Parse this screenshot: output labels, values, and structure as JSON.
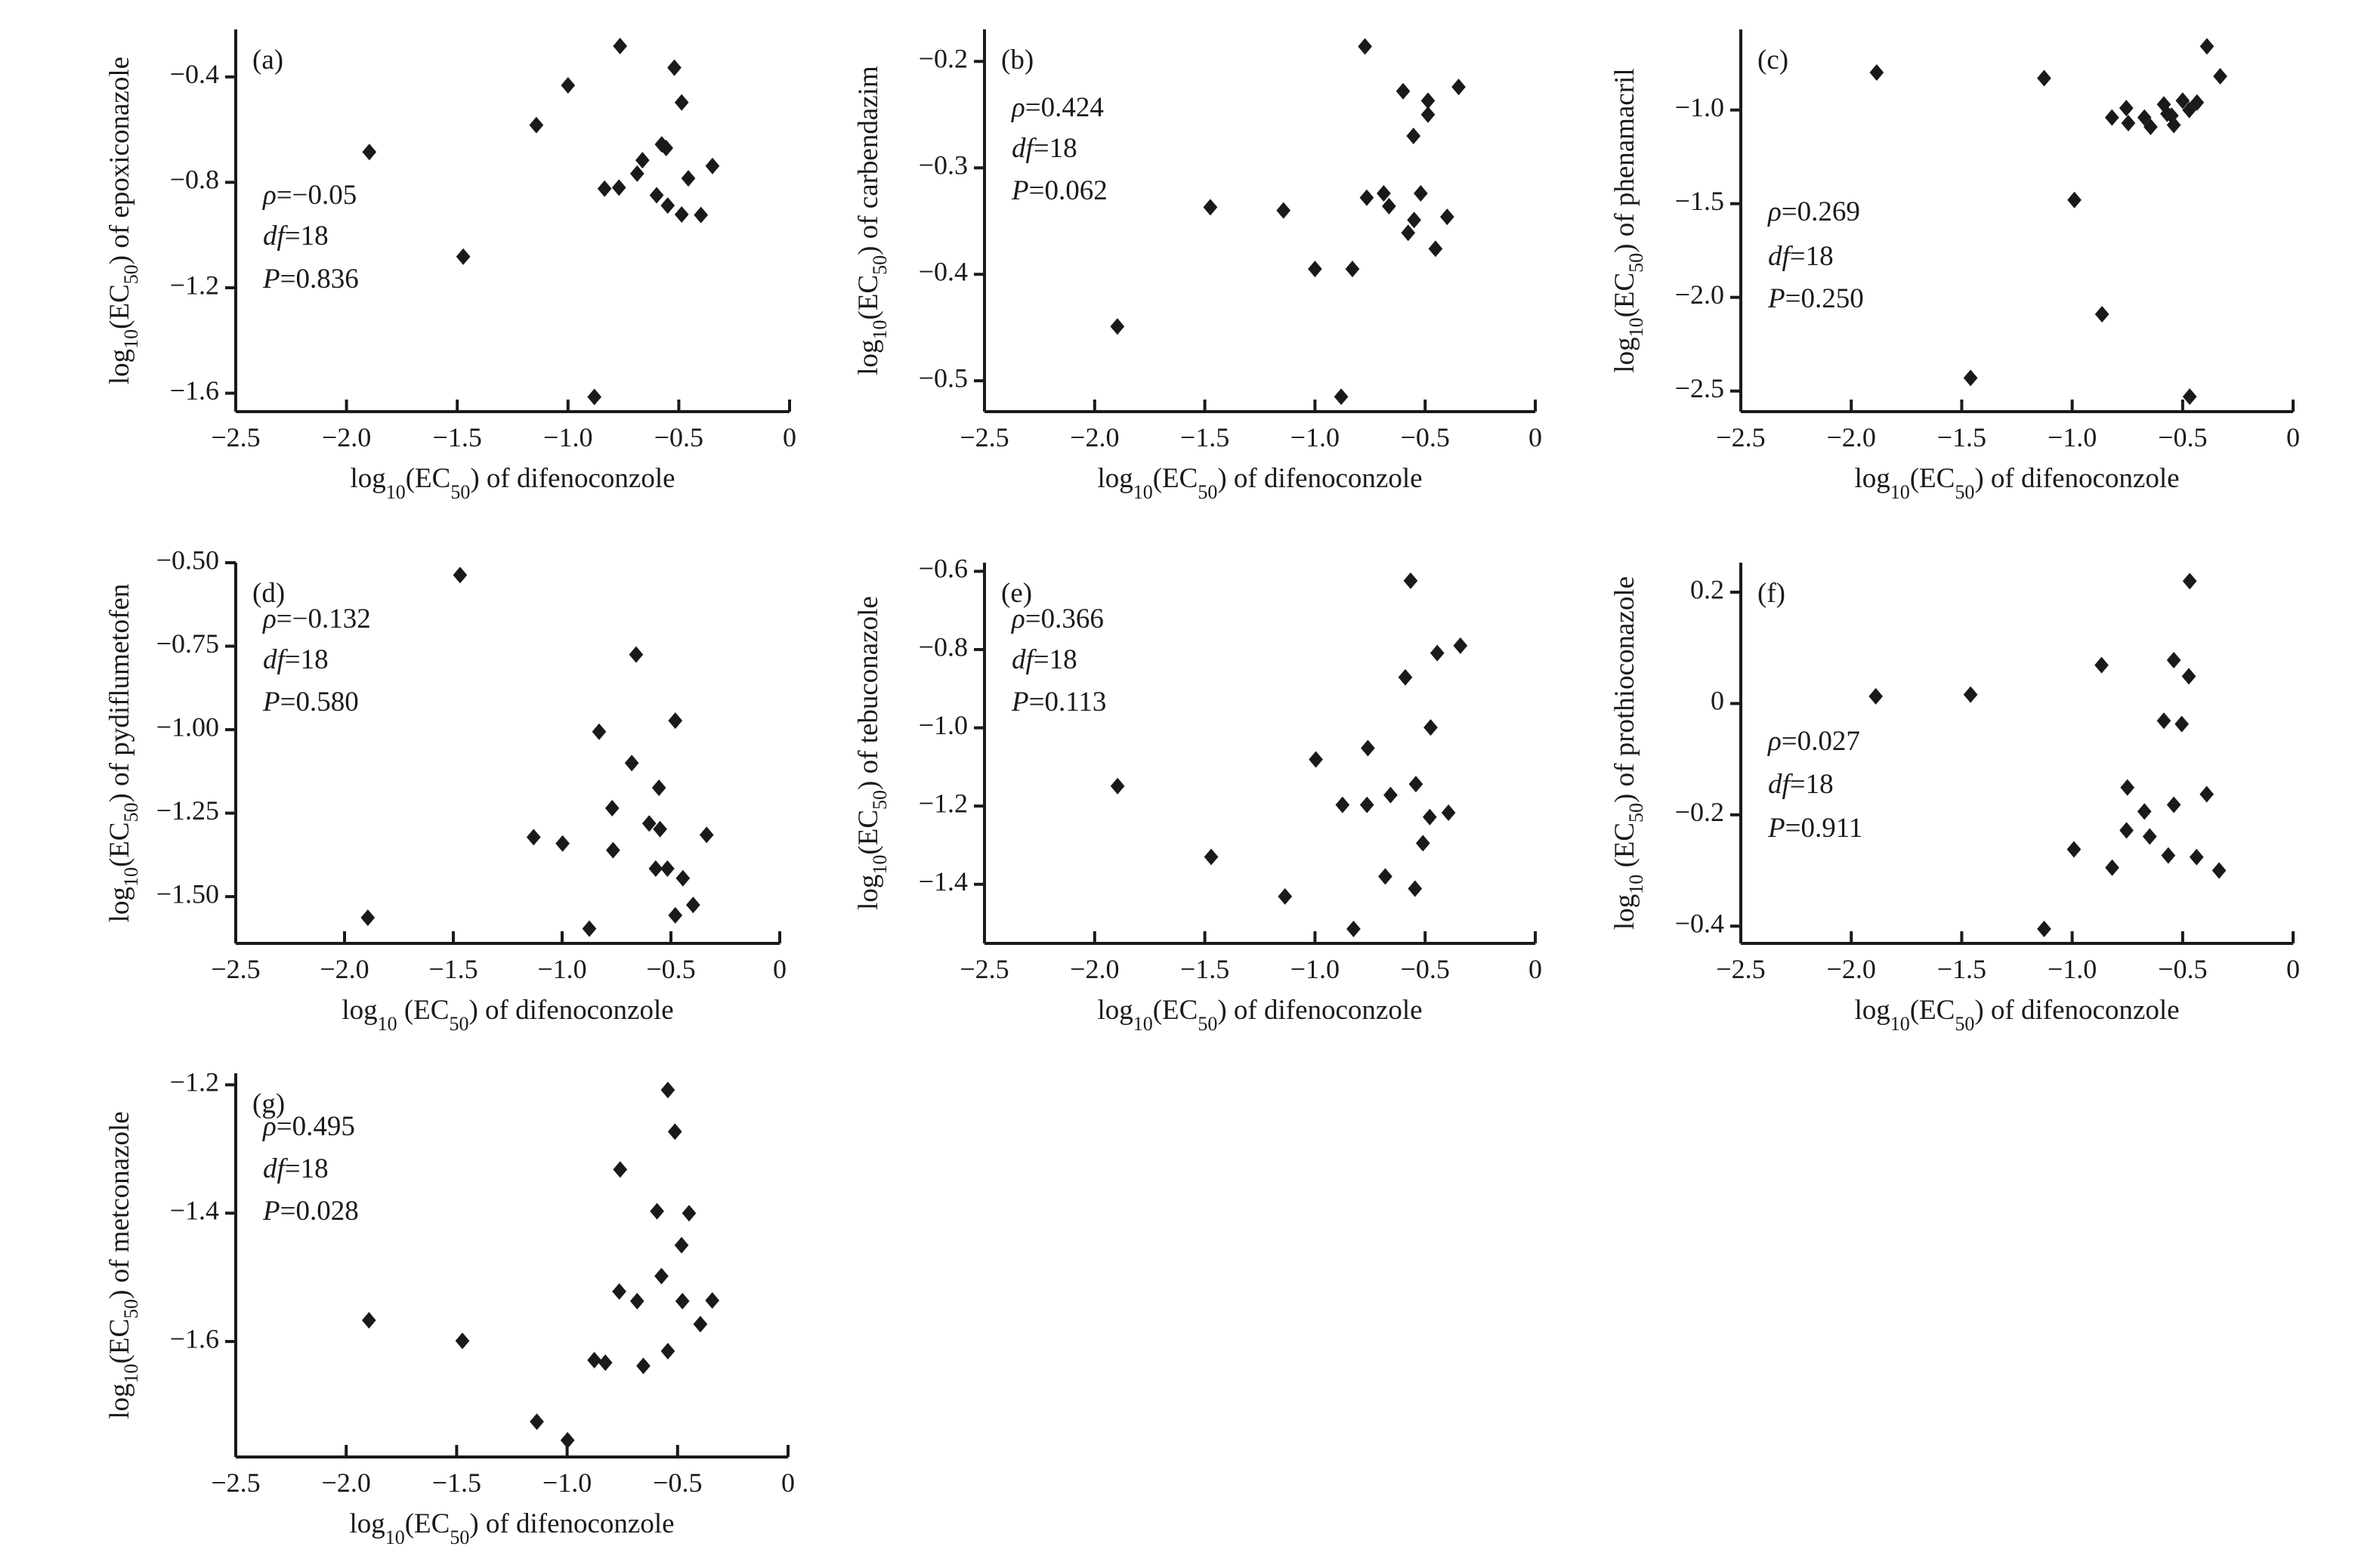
{
  "chart_data": [
    {
      "type": "scatter",
      "panel": "(a)",
      "xlabel": "log10(EC50) of difenoconzole",
      "ylabel": "log10(EC50) of epoxiconazole",
      "xlim": [
        -2.5,
        0
      ],
      "ylim": [
        -1.67,
        -0.22
      ],
      "xticks": [
        -2.5,
        -2.0,
        -1.5,
        -1.0,
        -0.5,
        0
      ],
      "xticklabels": [
        "−2.5",
        "−2.0",
        "−1.5",
        "−1.0",
        "−0.5",
        "0"
      ],
      "yticks": [
        -0.4,
        -0.8,
        -1.2,
        -1.6
      ],
      "yticklabels": [
        "−0.4",
        "−0.8",
        "−1.2",
        "−1.6"
      ],
      "annotation": [
        {
          "symbol": "ρ",
          "value": "−0.05"
        },
        {
          "symbol": "df",
          "value": "18"
        },
        {
          "symbol": "P",
          "value": "0.836"
        }
      ],
      "marker": "diamond",
      "color": "#1a1a1a",
      "x": [
        -0.765,
        -0.52,
        -1.0,
        -0.487,
        -1.143,
        -1.897,
        -0.577,
        -0.557,
        -0.664,
        -0.688,
        -0.348,
        -0.457,
        -0.835,
        -0.77,
        -0.6,
        -0.55,
        -0.487,
        -0.4,
        -1.473,
        -0.881
      ],
      "y": [
        -0.283,
        -0.365,
        -0.432,
        -0.497,
        -0.583,
        -0.685,
        -0.656,
        -0.67,
        -0.716,
        -0.767,
        -0.738,
        -0.785,
        -0.824,
        -0.82,
        -0.849,
        -0.888,
        -0.922,
        -0.924,
        -1.082,
        -1.614
      ]
    },
    {
      "type": "scatter",
      "panel": "(b)",
      "xlabel": "log10(EC50) of difenoconzole",
      "ylabel": "log10(EC50) of carbendazim",
      "xlim": [
        -2.5,
        0
      ],
      "ylim": [
        -0.529,
        -0.17
      ],
      "xticks": [
        -2.5,
        -2.0,
        -1.5,
        -1.0,
        -0.5,
        0
      ],
      "xticklabels": [
        "−2.5",
        "−2.0",
        "−1.5",
        "−1.0",
        "−0.5",
        "0"
      ],
      "yticks": [
        -0.2,
        -0.3,
        -0.4,
        -0.5
      ],
      "yticklabels": [
        "−0.2",
        "−0.3",
        "−0.4",
        "−0.5"
      ],
      "annotation": [
        {
          "symbol": "ρ",
          "value": "0.424"
        },
        {
          "symbol": "df",
          "value": "18"
        },
        {
          "symbol": "P",
          "value": "0.062"
        }
      ],
      "marker": "diamond",
      "color": "#1a1a1a",
      "x": [
        -0.773,
        -0.6,
        -0.348,
        -0.487,
        -0.487,
        -0.553,
        -0.688,
        -0.52,
        -0.765,
        -0.664,
        -1.475,
        -1.143,
        -0.55,
        -0.4,
        -0.577,
        -0.453,
        -1.0,
        -0.83,
        -1.897,
        -0.881
      ],
      "y": [
        -0.186,
        -0.228,
        -0.224,
        -0.237,
        -0.25,
        -0.27,
        -0.324,
        -0.324,
        -0.328,
        -0.336,
        -0.337,
        -0.34,
        -0.349,
        -0.346,
        -0.361,
        -0.376,
        -0.395,
        -0.395,
        -0.449,
        -0.515
      ]
    },
    {
      "type": "scatter",
      "panel": "(c)",
      "xlabel": "log10(EC50) of difenoconzole",
      "ylabel": "log10(EC50) of phenamacril",
      "xlim": [
        -2.5,
        0
      ],
      "ylim": [
        -2.61,
        -0.57
      ],
      "xticks": [
        -2.5,
        -2.0,
        -1.5,
        -1.0,
        -0.5,
        0
      ],
      "xticklabels": [
        "−2.5",
        "−2.0",
        "−1.5",
        "−1.0",
        "−0.5",
        "0"
      ],
      "yticks": [
        -1.0,
        -1.5,
        -2.0,
        -2.5
      ],
      "yticklabels": [
        "−1.0",
        "−1.5",
        "−2.0",
        "−2.5"
      ],
      "annotation": [
        {
          "symbol": "ρ",
          "value": "0.269"
        },
        {
          "symbol": "df",
          "value": "18"
        },
        {
          "symbol": "P",
          "value": "0.250"
        }
      ],
      "marker": "diamond",
      "color": "#1a1a1a",
      "x": [
        -1.885,
        -1.127,
        -0.39,
        -0.33,
        -0.99,
        -0.865,
        -1.46,
        -0.468,
        -0.82,
        -0.755,
        -0.746,
        -0.673,
        -0.645,
        -0.585,
        -0.57,
        -0.54,
        -0.5,
        -0.47,
        -0.435,
        -0.55
      ],
      "y": [
        -0.8,
        -0.83,
        -0.66,
        -0.82,
        -1.48,
        -2.09,
        -2.43,
        -2.53,
        -1.04,
        -0.99,
        -1.07,
        -1.04,
        -1.09,
        -0.97,
        -1.02,
        -1.08,
        -0.95,
        -1.0,
        -0.96,
        -1.03
      ]
    },
    {
      "type": "scatter",
      "panel": "(d)",
      "xlabel": "log10 (EC50) of difenoconzole",
      "ylabel": "log10(EC50) of pydiflumetofen",
      "xlim": [
        -2.5,
        0
      ],
      "ylim": [
        -1.64,
        -0.5
      ],
      "xticks": [
        -2.5,
        -2.0,
        -1.5,
        -1.0,
        -0.5,
        0
      ],
      "xticklabels": [
        "−2.5",
        "−2.0",
        "−1.5",
        "−1.0",
        "−0.5",
        "0"
      ],
      "yticks": [
        -0.5,
        -0.75,
        -1.0,
        -1.25,
        -1.5
      ],
      "yticklabels": [
        "−0.50",
        "−0.75",
        "−1.00",
        "−1.25",
        "−1.50"
      ],
      "annotation": [
        {
          "symbol": "ρ",
          "value": "−0.132"
        },
        {
          "symbol": "df",
          "value": "18"
        },
        {
          "symbol": "P",
          "value": "0.580"
        }
      ],
      "marker": "diamond",
      "color": "#1a1a1a",
      "x": [
        -1.469,
        -0.66,
        -0.48,
        -0.83,
        -0.68,
        -0.555,
        -0.77,
        -0.6,
        -0.55,
        -0.336,
        -1.131,
        -0.998,
        -0.766,
        -0.57,
        -0.516,
        -0.445,
        -0.398,
        -0.48,
        -1.893,
        -0.875
      ],
      "y": [
        -0.537,
        -0.775,
        -0.973,
        -1.006,
        -1.1,
        -1.174,
        -1.235,
        -1.281,
        -1.298,
        -1.315,
        -1.322,
        -1.341,
        -1.361,
        -1.416,
        -1.416,
        -1.445,
        -1.525,
        -1.556,
        -1.563,
        -1.596
      ]
    },
    {
      "type": "scatter",
      "panel": "(e)",
      "xlabel": "log10(EC50) of difenoconzole",
      "ylabel": "log10(EC50) of tebuconazole",
      "xlim": [
        -2.5,
        0
      ],
      "ylim": [
        -1.551,
        -0.578
      ],
      "xticks": [
        -2.5,
        -2.0,
        -1.5,
        -1.0,
        -0.5,
        0
      ],
      "xticklabels": [
        "−2.5",
        "−2.0",
        "−1.5",
        "−1.0",
        "−0.5",
        "0"
      ],
      "yticks": [
        -0.6,
        -0.8,
        -1.0,
        -1.2,
        -1.4
      ],
      "yticklabels": [
        "−0.6",
        "−0.8",
        "−1.0",
        "−1.2",
        "−1.4"
      ],
      "annotation": [
        {
          "symbol": "ρ",
          "value": "0.366"
        },
        {
          "symbol": "df",
          "value": "18"
        },
        {
          "symbol": "P",
          "value": "0.113"
        }
      ],
      "marker": "diamond",
      "color": "#1a1a1a",
      "x": [
        -0.566,
        -0.34,
        -0.445,
        -0.59,
        -0.475,
        -0.76,
        -0.996,
        -1.896,
        -0.542,
        -0.657,
        -0.875,
        -0.764,
        -0.394,
        -0.479,
        -0.51,
        -1.471,
        -0.681,
        -0.546,
        -1.136,
        -0.825
      ],
      "y": [
        -0.624,
        -0.79,
        -0.809,
        -0.871,
        -0.999,
        -1.052,
        -1.081,
        -1.149,
        -1.144,
        -1.172,
        -1.197,
        -1.197,
        -1.217,
        -1.228,
        -1.295,
        -1.33,
        -1.38,
        -1.411,
        -1.431,
        -1.514
      ]
    },
    {
      "type": "scatter",
      "panel": "(f)",
      "xlabel": "log10(EC50) of difenoconzole",
      "ylabel": "log10 (EC50) of prothioconazole",
      "xlim": [
        -2.5,
        0
      ],
      "ylim": [
        -0.431,
        0.253
      ],
      "xticks": [
        -2.5,
        -2.0,
        -1.5,
        -1.0,
        -0.5,
        0
      ],
      "xticklabels": [
        "−2.5",
        "−2.0",
        "−1.5",
        "−1.0",
        "−0.5",
        "0"
      ],
      "yticks": [
        0.2,
        0,
        -0.2,
        -0.4
      ],
      "yticklabels": [
        "0.2",
        "0",
        "−0.2",
        "−0.4"
      ],
      "annotation": [
        {
          "symbol": "ρ",
          "value": "0.027"
        },
        {
          "symbol": "df",
          "value": "18"
        },
        {
          "symbol": "P",
          "value": "0.911"
        }
      ],
      "marker": "diamond",
      "color": "#1a1a1a",
      "x": [
        -0.468,
        -0.867,
        -0.54,
        -0.472,
        -1.889,
        -1.46,
        -0.585,
        -0.504,
        -0.75,
        -0.391,
        -0.54,
        -0.673,
        -0.754,
        -0.649,
        -0.992,
        -0.565,
        -0.437,
        -0.819,
        -0.335,
        -1.127
      ],
      "y": [
        0.22,
        0.069,
        0.078,
        0.049,
        0.013,
        0.016,
        -0.031,
        -0.037,
        -0.151,
        -0.163,
        -0.182,
        -0.194,
        -0.228,
        -0.239,
        -0.262,
        -0.273,
        -0.276,
        -0.295,
        -0.3,
        -0.405
      ]
    },
    {
      "type": "scatter",
      "panel": "(g)",
      "xlabel": "log10(EC50) of difenoconzole",
      "ylabel": "log10(EC50) of metconazole",
      "xlim": [
        -2.5,
        0
      ],
      "ylim": [
        -1.78,
        -1.182
      ],
      "xticks": [
        -2.5,
        -2.0,
        -1.5,
        -1.0,
        -0.5,
        0
      ],
      "xticklabels": [
        "−2.5",
        "−2.0",
        "−1.5",
        "−1.0",
        "−0.5",
        "0"
      ],
      "yticks": [
        -1.2,
        -1.4,
        -1.6
      ],
      "yticklabels": [
        "−1.2",
        "−1.4",
        "−1.6"
      ],
      "annotation": [
        {
          "symbol": "ρ",
          "value": "0.495"
        },
        {
          "symbol": "df",
          "value": "18"
        },
        {
          "symbol": "P",
          "value": "0.028"
        }
      ],
      "marker": "diamond",
      "color": "#1a1a1a",
      "x": [
        -0.544,
        -0.512,
        -0.76,
        -0.593,
        -0.448,
        -0.482,
        -0.573,
        -0.764,
        -0.683,
        -0.478,
        -0.343,
        -1.897,
        -0.397,
        -1.474,
        -0.544,
        -0.877,
        -0.827,
        -0.655,
        -1.137,
        -0.998
      ],
      "y": [
        -1.208,
        -1.273,
        -1.332,
        -1.397,
        -1.4,
        -1.45,
        -1.498,
        -1.522,
        -1.537,
        -1.537,
        -1.536,
        -1.567,
        -1.573,
        -1.599,
        -1.615,
        -1.629,
        -1.633,
        -1.638,
        -1.725,
        -1.754
      ]
    }
  ]
}
